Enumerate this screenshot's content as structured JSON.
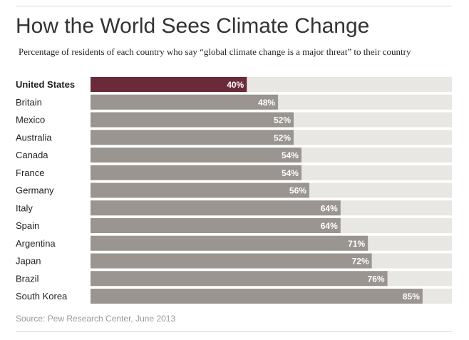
{
  "title": "How the World Sees Climate Change",
  "subtitle": "Percentage of residents of each country who say “global climate change is a major threat” to their country",
  "source": "Source: Pew Research Center, June 2013",
  "colors": {
    "highlight": "#6b2a3a",
    "bar": "#9a9590",
    "track": "#e9e7e3",
    "label_text": "#222222",
    "value_text": "#ffffff"
  },
  "chart_data": {
    "type": "bar",
    "orientation": "horizontal",
    "categories": [
      "United States",
      "Britain",
      "Mexico",
      "Australia",
      "Canada",
      "France",
      "Germany",
      "Italy",
      "Spain",
      "Argentina",
      "Japan",
      "Brazil",
      "South Korea"
    ],
    "values": [
      40,
      48,
      52,
      52,
      54,
      54,
      56,
      64,
      64,
      71,
      72,
      76,
      85
    ],
    "value_labels": [
      "40%",
      "48%",
      "52%",
      "52%",
      "54%",
      "54%",
      "56%",
      "64%",
      "64%",
      "71%",
      "72%",
      "76%",
      "85%"
    ],
    "highlighted": "United States",
    "xlim": [
      0,
      100
    ],
    "unit": "%",
    "grid": false,
    "legend": "none"
  }
}
